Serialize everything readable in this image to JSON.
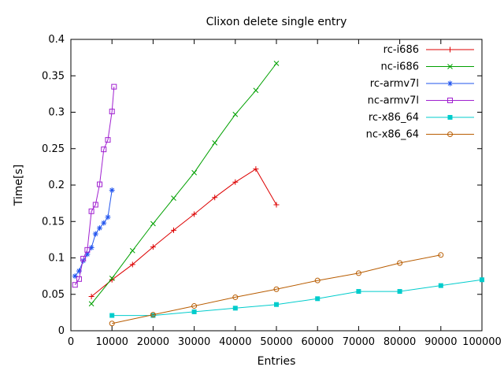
{
  "chart_data": {
    "type": "line",
    "title": "Clixon delete single entry",
    "xlabel": "Entries",
    "ylabel": "Time[s]",
    "xlim": [
      0,
      100000
    ],
    "ylim": [
      0,
      0.4
    ],
    "x_ticks": [
      0,
      10000,
      20000,
      30000,
      40000,
      50000,
      60000,
      70000,
      80000,
      90000,
      100000
    ],
    "y_ticks": [
      0,
      0.05,
      0.1,
      0.15,
      0.2,
      0.25,
      0.3,
      0.35,
      0.4
    ],
    "grid": false,
    "legend_position": "top-right-inside",
    "background_color": "#ffffff",
    "foreground_color": "#000000",
    "series": [
      {
        "name": "rc-i686",
        "color": "#dd0000",
        "marker": "plus",
        "x": [
          5000,
          10000,
          15000,
          20000,
          25000,
          30000,
          35000,
          40000,
          45000,
          50000
        ],
        "y": [
          0.047,
          0.07,
          0.091,
          0.115,
          0.138,
          0.16,
          0.183,
          0.204,
          0.222,
          0.173
        ]
      },
      {
        "name": "nc-i686",
        "color": "#00a000",
        "marker": "cross",
        "x": [
          5000,
          10000,
          15000,
          20000,
          25000,
          30000,
          35000,
          40000,
          45000,
          50000
        ],
        "y": [
          0.037,
          0.072,
          0.11,
          0.147,
          0.182,
          0.217,
          0.258,
          0.297,
          0.33,
          0.367
        ]
      },
      {
        "name": "rc-armv7l",
        "color": "#2255ee",
        "marker": "asterisk",
        "x": [
          1000,
          2000,
          3000,
          4000,
          5000,
          6000,
          7000,
          8000,
          9000,
          10000
        ],
        "y": [
          0.075,
          0.082,
          0.096,
          0.105,
          0.114,
          0.133,
          0.141,
          0.148,
          0.156,
          0.193
        ]
      },
      {
        "name": "nc-armv7l",
        "color": "#a020d0",
        "marker": "square-open",
        "x": [
          1000,
          2000,
          3000,
          4000,
          5000,
          6000,
          7000,
          8000,
          9000,
          10000,
          10500
        ],
        "y": [
          0.063,
          0.071,
          0.099,
          0.111,
          0.164,
          0.173,
          0.201,
          0.249,
          0.262,
          0.301,
          0.335
        ]
      },
      {
        "name": "rc-x86_64",
        "color": "#00cccc",
        "marker": "square-filled",
        "x": [
          10000,
          20000,
          30000,
          40000,
          50000,
          60000,
          70000,
          80000,
          90000,
          100000
        ],
        "y": [
          0.021,
          0.021,
          0.026,
          0.031,
          0.036,
          0.044,
          0.054,
          0.054,
          0.062,
          0.07
        ]
      },
      {
        "name": "nc-x86_64",
        "color": "#b85c00",
        "marker": "circle-open",
        "x": [
          10000,
          20000,
          30000,
          40000,
          50000,
          60000,
          70000,
          80000,
          90000
        ],
        "y": [
          0.01,
          0.022,
          0.034,
          0.046,
          0.057,
          0.069,
          0.079,
          0.093,
          0.104
        ]
      }
    ]
  }
}
